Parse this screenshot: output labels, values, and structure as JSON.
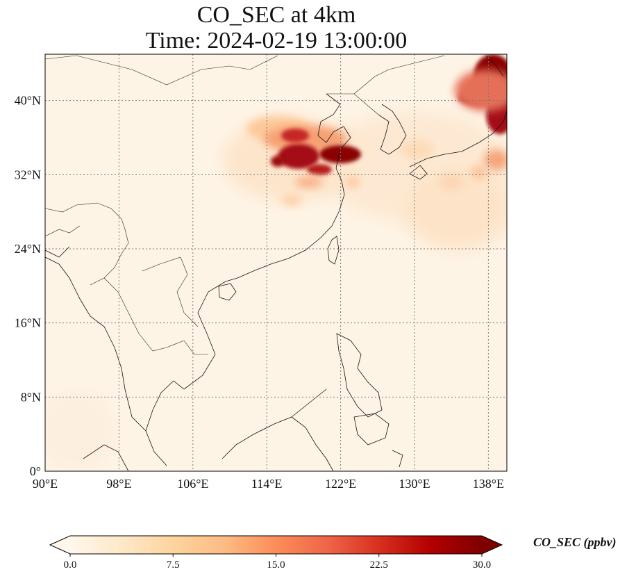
{
  "title": {
    "line1": "CO_SEC at 4km",
    "line2": "Time: 2024-02-19 13:00:00"
  },
  "map": {
    "projection": "PlateCarree",
    "lon_range": [
      90,
      140
    ],
    "lat_range": [
      0,
      45
    ],
    "gridlines": "dotted",
    "x_ticks": [
      {
        "value": 90,
        "label": "90°E"
      },
      {
        "value": 98,
        "label": "98°E"
      },
      {
        "value": 106,
        "label": "106°E"
      },
      {
        "value": 114,
        "label": "114°E"
      },
      {
        "value": 122,
        "label": "122°E"
      },
      {
        "value": 130,
        "label": "130°E"
      },
      {
        "value": 138,
        "label": "138°E"
      }
    ],
    "y_ticks": [
      {
        "value": 0,
        "label": "0°"
      },
      {
        "value": 8,
        "label": "8°N"
      },
      {
        "value": 16,
        "label": "16°N"
      },
      {
        "value": 24,
        "label": "24°N"
      },
      {
        "value": 32,
        "label": "32°N"
      },
      {
        "value": 40,
        "label": "40°N"
      }
    ]
  },
  "colorbar": {
    "label": "CO_SEC (ppbv)",
    "colormap": "OrRd",
    "min": 0,
    "max": 30,
    "extend": "both",
    "ticks": [
      "0.0",
      "7.5",
      "15.0",
      "22.5",
      "30.0"
    ],
    "colors": [
      "#fff7ec",
      "#fee8c8",
      "#fdd49e",
      "#fdbb84",
      "#fc8d59",
      "#ef6548",
      "#d7301f",
      "#b30000",
      "#7f0000"
    ]
  }
}
